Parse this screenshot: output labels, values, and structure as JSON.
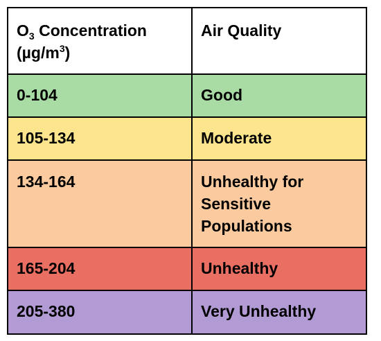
{
  "table": {
    "header": {
      "conc_prefix": "O",
      "conc_subscript": "3",
      "conc_suffix": " Concentration",
      "unit_prefix": "(µg/m",
      "unit_superscript": "3",
      "unit_suffix": ")",
      "quality": "Air Quality"
    },
    "rows": [
      {
        "range": "0-104",
        "quality": "Good",
        "color": "#a9dba4"
      },
      {
        "range": "105-134",
        "quality": "Moderate",
        "color": "#fde58d"
      },
      {
        "range": "134-164",
        "quality": "Unhealthy for Sensitive Populations",
        "color": "#fbcb9f"
      },
      {
        "range": "165-204",
        "quality": "Unhealthy",
        "color": "#e96f62"
      },
      {
        "range": "205-380",
        "quality": "Very Unhealthy",
        "color": "#b29ad5"
      }
    ]
  }
}
